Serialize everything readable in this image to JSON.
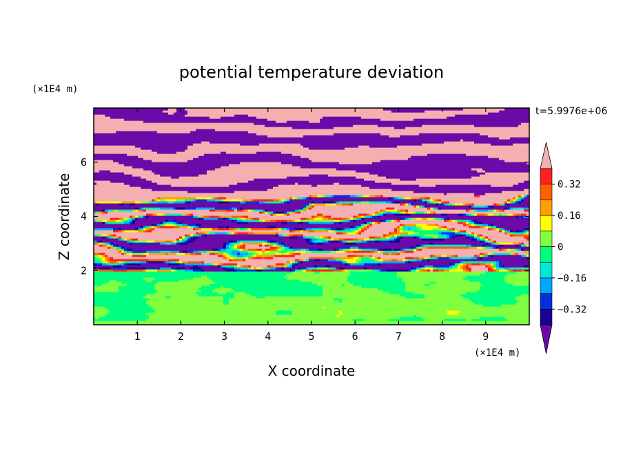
{
  "chart_data": {
    "type": "heatmap",
    "title": "potential temperature deviation",
    "xlabel": "X coordinate",
    "ylabel": "Z coordinate",
    "x_unit": "(×1E4 m)",
    "z_unit": "(×1E4 m)",
    "time_label": "t=5.9976e+06",
    "xlim": [
      0,
      10
    ],
    "ylim": [
      0,
      8
    ],
    "x_ticks": [
      1,
      2,
      3,
      4,
      5,
      6,
      7,
      8,
      9
    ],
    "y_ticks": [
      2,
      4,
      6
    ],
    "colorbar": {
      "levels": [
        -0.4,
        -0.32,
        -0.24,
        -0.16,
        -0.08,
        0,
        0.08,
        0.16,
        0.24,
        0.32,
        0.4
      ],
      "tick_labels": [
        "0.32",
        "0.16",
        "0",
        "−0.16",
        "−0.32"
      ],
      "tick_values": [
        0.32,
        0.16,
        0,
        -0.16,
        -0.32
      ],
      "colors": [
        "#6a0aa8",
        "#1a0096",
        "#0030e0",
        "#00a8ff",
        "#00e8d8",
        "#00ff80",
        "#80ff40",
        "#ffff00",
        "#ffa000",
        "#ff6000",
        "#ff2020",
        "#f4b0b0"
      ],
      "extend": "both"
    },
    "regions": {
      "lower_layer": {
        "z_range": [
          0,
          1.95
        ],
        "dominant_values": [
          -0.04,
          0.04
        ],
        "note": "green / light green turbulent field"
      },
      "transition_layer": {
        "z_range": [
          1.95,
          4.8
        ],
        "pattern": "mixed bands, full color range"
      },
      "upper_layer": {
        "z_range": [
          4.8,
          8
        ],
        "pattern": "alternating bands of >0.4 (pink) and <-0.4 (purple)"
      }
    }
  }
}
